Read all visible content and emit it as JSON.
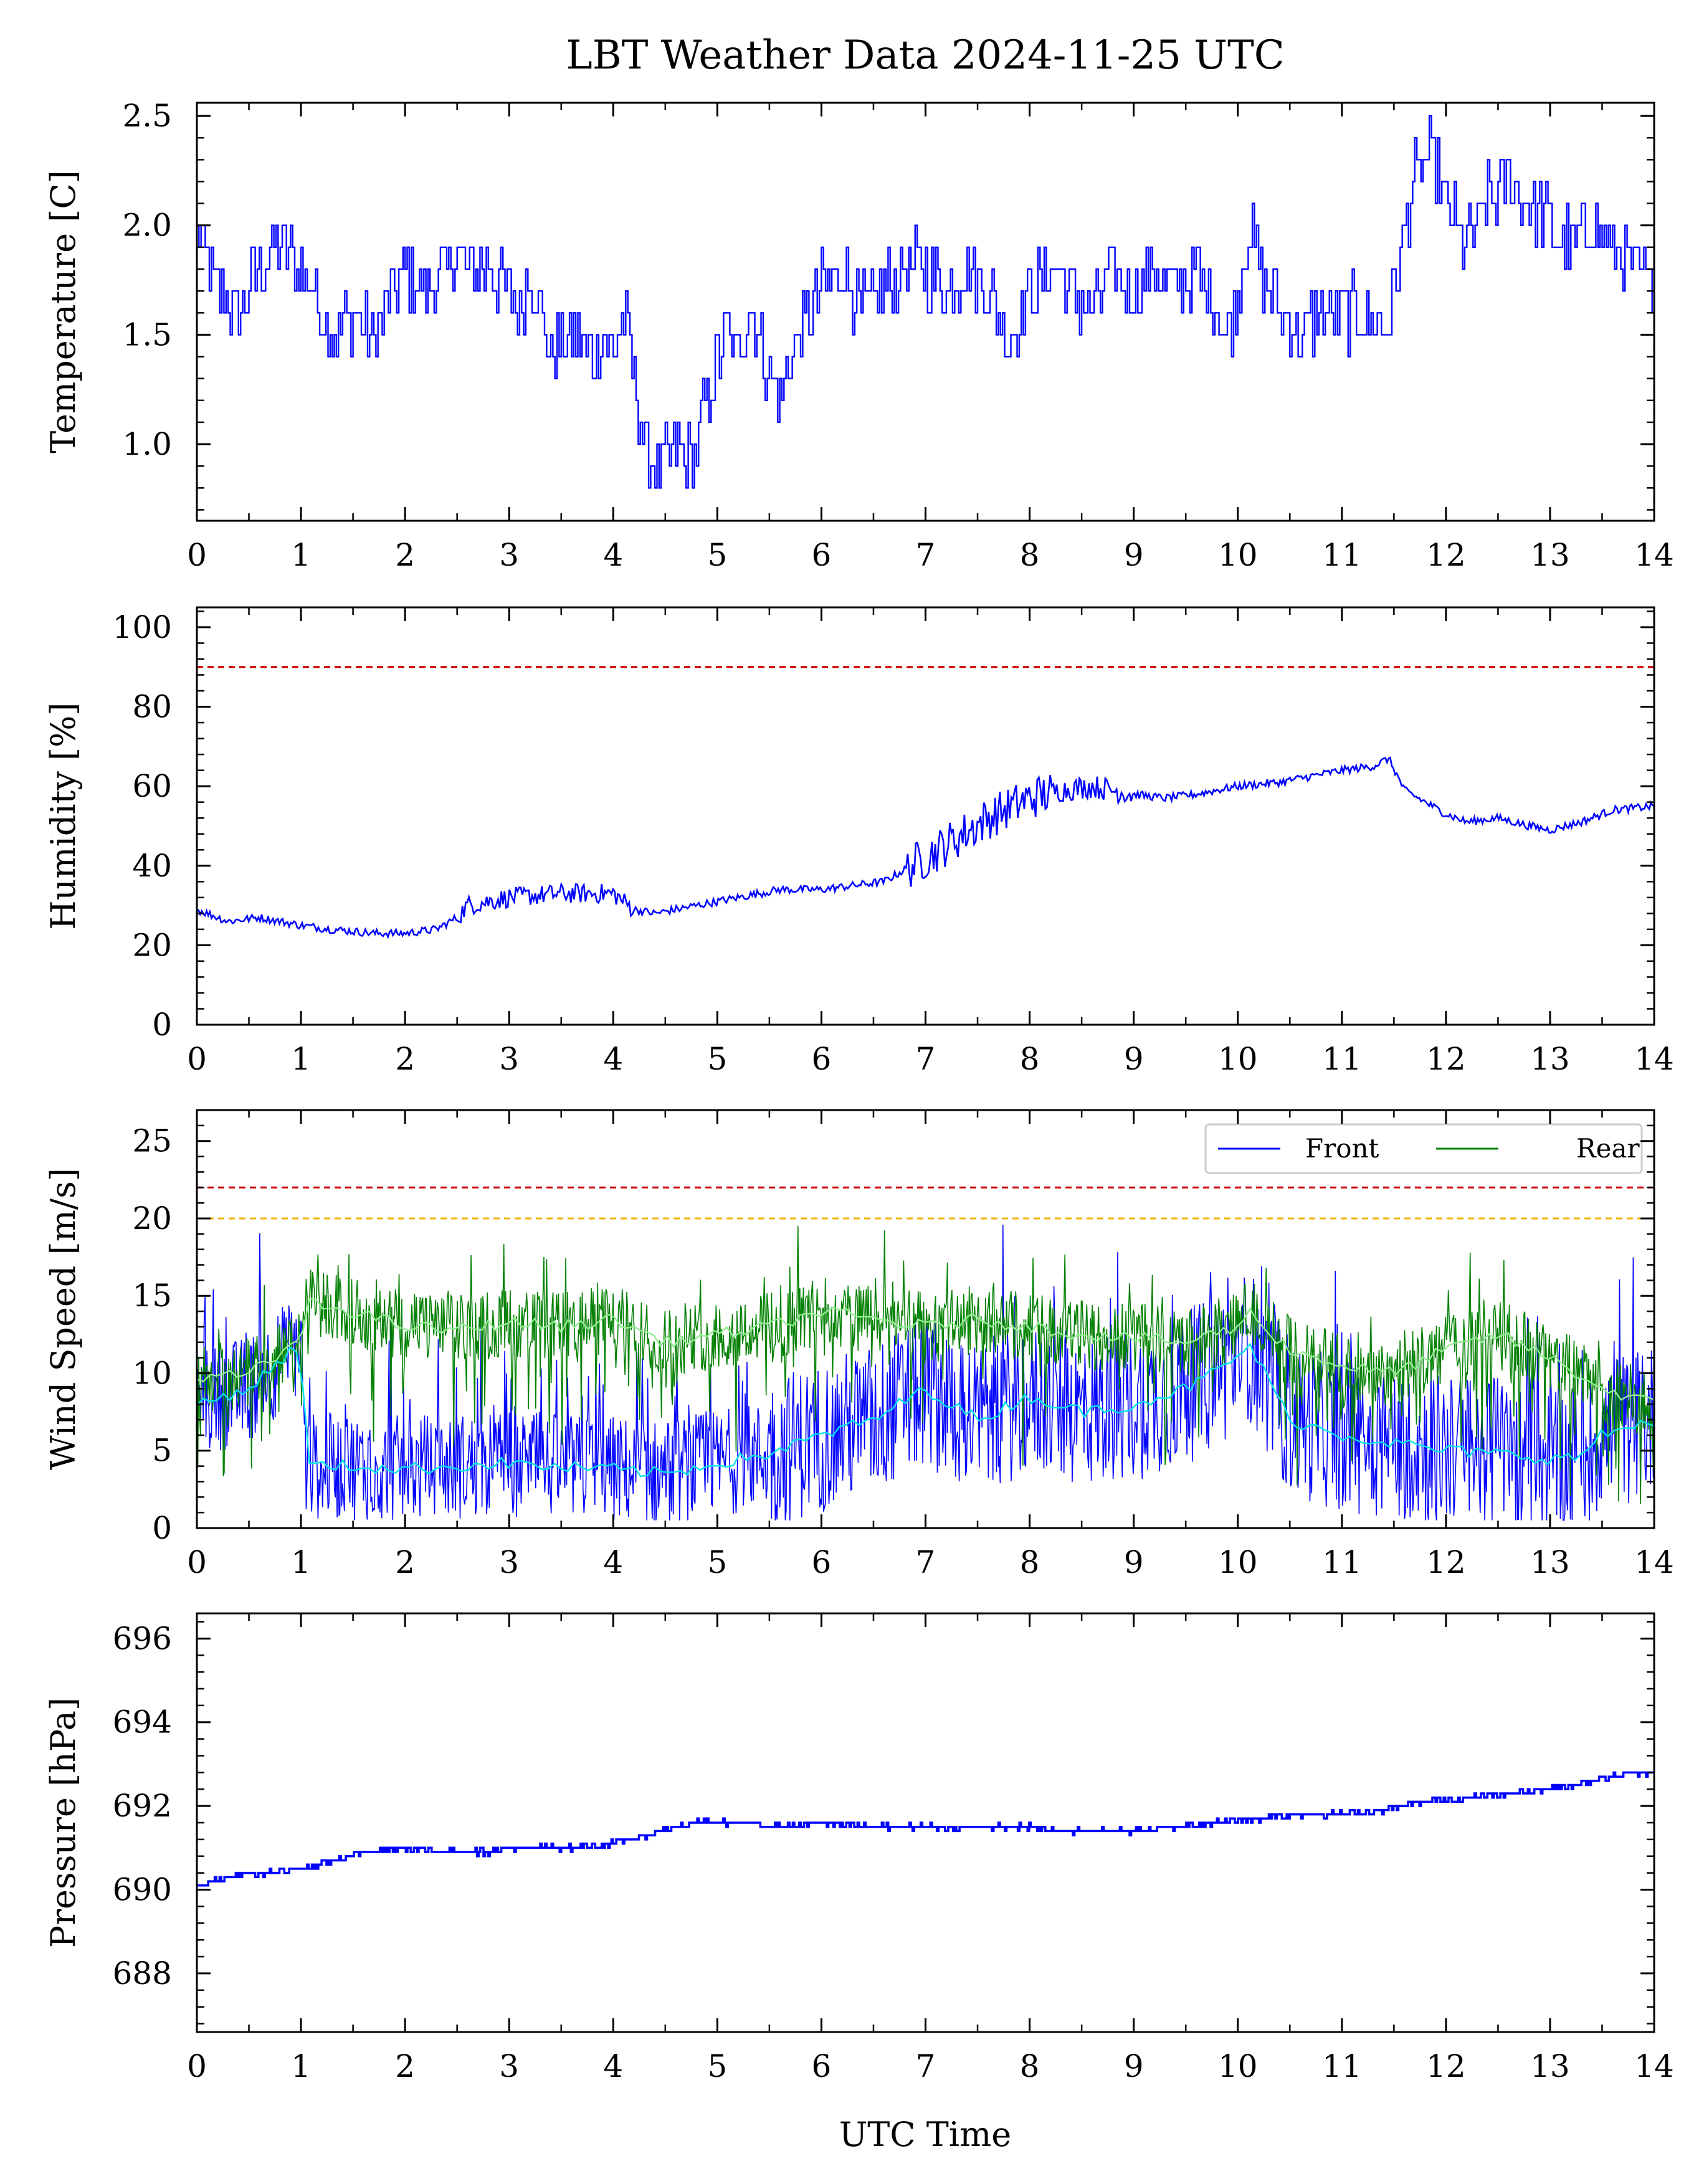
{
  "figure_title": "LBT Weather Data 2024-11-25 UTC",
  "x_axis_label": "UTC Time",
  "x_ticks": [
    "0",
    "1",
    "2",
    "3",
    "4",
    "5",
    "6",
    "7",
    "8",
    "9",
    "10",
    "11",
    "12",
    "13",
    "14"
  ],
  "colors": {
    "primary_series": "#0000ff",
    "rear_series": "#008000",
    "front_smoothed": "#00e5ee",
    "rear_smoothed": "#90ee90",
    "limit_red": "#cc0000",
    "limit_orange": "#f0b400"
  },
  "chart_data": [
    {
      "type": "line",
      "ylabel": "Temperature [C]",
      "xlim": [
        0,
        14
      ],
      "ylim": [
        0.65,
        2.56
      ],
      "yticks": [
        "1.0",
        "1.5",
        "2.0",
        "2.5"
      ],
      "step": true,
      "series": [
        {
          "x": [
            0,
            0.1,
            0.2,
            0.4,
            0.6,
            0.8,
            1.0,
            1.1,
            1.2,
            1.3,
            1.5,
            1.7,
            1.9,
            2.0,
            2.2,
            2.4,
            2.5,
            2.6,
            2.8,
            3.0,
            3.1,
            3.2,
            3.3,
            3.4,
            3.6,
            3.8,
            3.9,
            4.0,
            4.1,
            4.2,
            4.3,
            4.4,
            4.5,
            4.6,
            4.7,
            4.8,
            4.9,
            5.0,
            5.1,
            5.2,
            5.3,
            5.4,
            5.5,
            5.6,
            5.7,
            5.8,
            6.0,
            6.2,
            6.4,
            6.6,
            6.8,
            7.0,
            7.2,
            7.4,
            7.6,
            7.8,
            8.0,
            8.2,
            8.4,
            8.6,
            8.8,
            9.0,
            9.2,
            9.4,
            9.6,
            9.8,
            9.9,
            10.0,
            10.1,
            10.2,
            10.4,
            10.6,
            10.8,
            11.0,
            11.2,
            11.4,
            11.5,
            11.6,
            11.7,
            11.8,
            11.9,
            12.0,
            12.2,
            12.4,
            12.6,
            12.8,
            13.0,
            13.2,
            13.4,
            13.6,
            13.8,
            14.0
          ],
          "y": [
            2.0,
            1.8,
            1.7,
            1.6,
            1.8,
            1.9,
            1.8,
            1.7,
            1.6,
            1.5,
            1.6,
            1.5,
            1.7,
            1.8,
            1.7,
            1.8,
            1.9,
            1.8,
            1.8,
            1.7,
            1.6,
            1.8,
            1.6,
            1.4,
            1.5,
            1.4,
            1.5,
            1.4,
            1.6,
            1.3,
            1.0,
            0.9,
            0.9,
            1.0,
            0.9,
            1.0,
            1.2,
            1.4,
            1.5,
            1.4,
            1.6,
            1.5,
            1.3,
            1.2,
            1.4,
            1.5,
            1.7,
            1.8,
            1.6,
            1.7,
            1.8,
            1.8,
            1.7,
            1.8,
            1.7,
            1.5,
            1.7,
            1.8,
            1.7,
            1.6,
            1.8,
            1.7,
            1.8,
            1.7,
            1.8,
            1.6,
            1.5,
            1.7,
            2.0,
            1.8,
            1.6,
            1.5,
            1.6,
            1.6,
            1.6,
            1.5,
            1.7,
            2.0,
            2.2,
            2.3,
            2.3,
            2.1,
            1.9,
            2.1,
            2.2,
            2.1,
            2.0,
            1.9,
            2.0,
            1.9,
            1.8,
            1.7
          ]
        }
      ]
    },
    {
      "type": "line",
      "ylabel": "Humidity [%]",
      "xlim": [
        0,
        14
      ],
      "ylim": [
        0,
        105
      ],
      "yticks": [
        "0",
        "20",
        "40",
        "60",
        "80",
        "100"
      ],
      "hlines": [
        {
          "y": 90,
          "color": "red"
        }
      ],
      "series": [
        {
          "x": [
            0,
            0.3,
            0.6,
            1.0,
            1.3,
            1.7,
            2.0,
            2.3,
            2.5,
            2.6,
            3.0,
            3.5,
            4.0,
            4.2,
            4.4,
            4.8,
            5.2,
            5.6,
            6.0,
            6.3,
            6.6,
            7.0,
            7.3,
            7.6,
            8.0,
            8.3,
            8.6,
            9.0,
            9.3,
            9.6,
            10.0,
            10.4,
            10.8,
            11.0,
            11.3,
            11.45,
            11.6,
            11.8,
            12.0,
            12.2,
            12.5,
            12.8,
            13.0,
            13.3,
            13.6,
            14.0
          ],
          "y": [
            29,
            26,
            27,
            25,
            24,
            23,
            23,
            24,
            27,
            30,
            32,
            33,
            33,
            29,
            28,
            30,
            32,
            34,
            34,
            35,
            36,
            42,
            47,
            52,
            57,
            59,
            60,
            58,
            57,
            58,
            60,
            61,
            63,
            64,
            65,
            67,
            59,
            56,
            53,
            51,
            52,
            50,
            49,
            51,
            54,
            55
          ]
        }
      ]
    },
    {
      "type": "line",
      "ylabel": "Wind Speed [m/s]",
      "xlim": [
        0,
        14
      ],
      "ylim": [
        0,
        27
      ],
      "yticks": [
        "0",
        "5",
        "10",
        "15",
        "20",
        "25"
      ],
      "hlines": [
        {
          "y": 22,
          "color": "red"
        },
        {
          "y": 20,
          "color": "orange"
        }
      ],
      "legend": {
        "placement": "top-right",
        "entries": [
          "Front",
          "Rear"
        ]
      },
      "series": [
        {
          "name": "Front",
          "x": [
            0,
            0.5,
            1.0,
            1.05,
            1.5,
            2.0,
            2.5,
            3.0,
            3.5,
            4.0,
            4.5,
            5.0,
            5.5,
            6.0,
            6.5,
            7.0,
            7.5,
            8.0,
            8.5,
            9.0,
            9.5,
            10.0,
            10.1,
            10.5,
            11.0,
            11.5,
            12.0,
            12.5,
            13.0,
            13.25,
            13.5,
            14.0
          ],
          "y": [
            8,
            9,
            12,
            4,
            4,
            3.8,
            4,
            4.2,
            3.9,
            3.8,
            3.5,
            4.2,
            4.8,
            6,
            7,
            9,
            7,
            8.5,
            7.5,
            8,
            9,
            11,
            12,
            7,
            6,
            5.5,
            5,
            4.8,
            4.5,
            4.5,
            6,
            7
          ]
        },
        {
          "name": "Rear",
          "x": [
            0,
            0.5,
            1.0,
            1.05,
            1.5,
            2.0,
            2.5,
            3.0,
            3.5,
            4.0,
            4.5,
            5.0,
            5.5,
            6.0,
            6.5,
            7.0,
            7.5,
            8.0,
            8.5,
            9.0,
            9.5,
            10.0,
            10.1,
            10.5,
            11.0,
            11.5,
            12.0,
            12.5,
            13.0,
            13.5,
            14.0
          ],
          "y": [
            9.5,
            10,
            12,
            14.5,
            14,
            13,
            12.8,
            13.3,
            13,
            13.5,
            12,
            12.5,
            13,
            14,
            13.5,
            13,
            13.5,
            13,
            12.5,
            12.3,
            12,
            13,
            14,
            11.5,
            10.5,
            10,
            11.5,
            12.5,
            11,
            9,
            8
          ]
        }
      ]
    },
    {
      "type": "line",
      "ylabel": "Pressure [hPa]",
      "xlim": [
        0,
        14
      ],
      "ylim": [
        686.6,
        696.6
      ],
      "yticks": [
        "688",
        "690",
        "692",
        "694",
        "696"
      ],
      "step": true,
      "series": [
        {
          "x": [
            0,
            0.3,
            0.7,
            1.0,
            1.3,
            1.6,
            2.0,
            2.4,
            2.8,
            3.2,
            3.6,
            4.0,
            4.3,
            4.6,
            4.8,
            5.2,
            5.6,
            6.0,
            6.5,
            7.0,
            7.5,
            8.0,
            8.3,
            8.6,
            9.0,
            9.4,
            9.8,
            10.2,
            10.6,
            11.0,
            11.4,
            11.8,
            12.2,
            12.6,
            13.0,
            13.4,
            13.8,
            14.0
          ],
          "y": [
            690.1,
            690.3,
            690.4,
            690.5,
            690.7,
            690.9,
            691.0,
            690.9,
            690.9,
            691.0,
            691.0,
            691.1,
            691.3,
            691.5,
            691.6,
            691.6,
            691.5,
            691.6,
            691.5,
            691.5,
            691.5,
            691.5,
            691.4,
            691.4,
            691.4,
            691.5,
            691.6,
            691.7,
            691.8,
            691.8,
            691.9,
            692.1,
            692.2,
            692.3,
            692.4,
            692.6,
            692.8,
            692.8
          ]
        }
      ]
    }
  ]
}
